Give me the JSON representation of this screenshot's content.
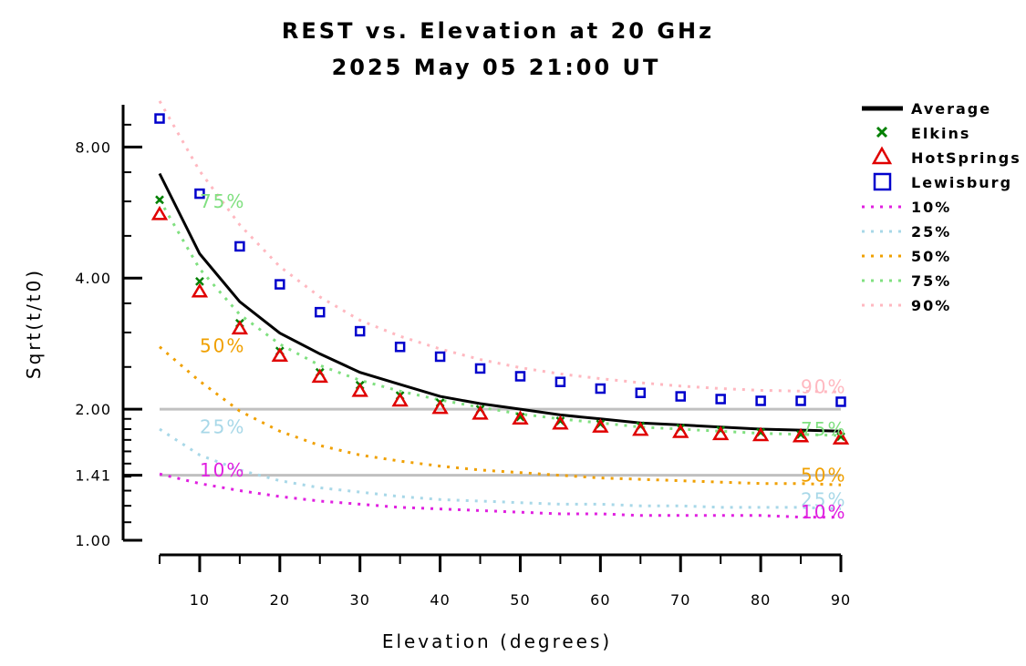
{
  "chart_data": {
    "type": "scatter",
    "title": "REST vs. Elevation at 20 GHz",
    "subtitle": "2025 May 05 21:00 UT",
    "xlabel": "Elevation (degrees)",
    "ylabel": "Sqrt(t/t0)",
    "x_ticks": [
      "10",
      "20",
      "30",
      "40",
      "50",
      "60",
      "70",
      "80",
      "90"
    ],
    "x_tick_values": [
      10,
      20,
      30,
      40,
      50,
      60,
      70,
      80,
      90
    ],
    "y_scale": "log",
    "y_ticks": [
      "1.00",
      "1.41",
      "2.00",
      "4.00",
      "8.00"
    ],
    "y_tick_values": [
      1.0,
      1.41,
      2.0,
      4.0,
      8.0
    ],
    "xlim": [
      5,
      90
    ],
    "ylim": [
      1.0,
      10.0
    ],
    "reference_lines": [
      1.41,
      2.0
    ],
    "x": [
      5,
      10,
      15,
      20,
      25,
      30,
      35,
      40,
      45,
      50,
      55,
      60,
      65,
      70,
      75,
      80,
      85,
      90
    ],
    "series": [
      {
        "name": "Average",
        "style": "line",
        "color": "#000000",
        "values": [
          6.95,
          4.55,
          3.53,
          2.99,
          2.68,
          2.43,
          2.28,
          2.14,
          2.06,
          2.0,
          1.94,
          1.9,
          1.86,
          1.84,
          1.82,
          1.8,
          1.79,
          1.78
        ]
      },
      {
        "name": "Elkins",
        "style": "x-marker",
        "color": "#008000",
        "values": [
          6.05,
          3.93,
          3.15,
          2.72,
          2.43,
          2.27,
          2.15,
          2.07,
          2.0,
          1.92,
          1.88,
          1.85,
          1.83,
          1.81,
          1.79,
          1.77,
          1.75,
          1.73
        ]
      },
      {
        "name": "HotSprings",
        "style": "triangle-marker",
        "color": "#e00000",
        "values": [
          5.6,
          3.72,
          3.06,
          2.65,
          2.37,
          2.2,
          2.09,
          2.01,
          1.95,
          1.9,
          1.85,
          1.82,
          1.79,
          1.77,
          1.75,
          1.74,
          1.73,
          1.71
        ]
      },
      {
        "name": "Lewisburg",
        "style": "square-marker",
        "color": "#0000cc",
        "values": [
          9.3,
          6.25,
          4.73,
          3.87,
          3.34,
          3.02,
          2.78,
          2.64,
          2.48,
          2.38,
          2.31,
          2.23,
          2.18,
          2.14,
          2.11,
          2.09,
          2.09,
          2.08
        ]
      },
      {
        "name": "10%",
        "style": "dotted",
        "color": "#e020e0",
        "values": [
          1.42,
          1.35,
          1.3,
          1.26,
          1.23,
          1.21,
          1.19,
          1.18,
          1.17,
          1.16,
          1.15,
          1.15,
          1.14,
          1.14,
          1.14,
          1.14,
          1.13,
          1.13
        ]
      },
      {
        "name": "25%",
        "style": "dotted",
        "color": "#a8d8e8",
        "values": [
          1.8,
          1.57,
          1.45,
          1.37,
          1.32,
          1.29,
          1.26,
          1.24,
          1.23,
          1.22,
          1.21,
          1.21,
          1.2,
          1.2,
          1.19,
          1.19,
          1.19,
          1.18
        ]
      },
      {
        "name": "50%",
        "style": "dotted",
        "color": "#f0a000",
        "values": [
          2.78,
          2.32,
          1.98,
          1.78,
          1.65,
          1.57,
          1.52,
          1.48,
          1.45,
          1.43,
          1.41,
          1.39,
          1.38,
          1.37,
          1.36,
          1.35,
          1.35,
          1.34
        ]
      },
      {
        "name": "75%",
        "style": "dotted",
        "color": "#80e080",
        "values": [
          6.05,
          4.2,
          3.3,
          2.82,
          2.52,
          2.33,
          2.2,
          2.1,
          2.02,
          1.95,
          1.9,
          1.86,
          1.82,
          1.8,
          1.78,
          1.76,
          1.75,
          1.74
        ]
      },
      {
        "name": "90%",
        "style": "dotted",
        "color": "#ffb8c0",
        "values": [
          10.2,
          7.05,
          5.3,
          4.25,
          3.62,
          3.2,
          2.94,
          2.75,
          2.6,
          2.49,
          2.41,
          2.35,
          2.3,
          2.26,
          2.23,
          2.21,
          2.2,
          2.19
        ]
      }
    ],
    "percentile_labels": [
      {
        "text": "75%",
        "series": "75%",
        "x": 10,
        "y": 6.0
      },
      {
        "text": "50%",
        "series": "50%",
        "x": 10,
        "y": 2.8
      },
      {
        "text": "25%",
        "series": "25%",
        "x": 10,
        "y": 1.82
      },
      {
        "text": "10%",
        "series": "10%",
        "x": 10,
        "y": 1.45
      },
      {
        "text": "90%",
        "series": "90%",
        "x": 85,
        "y": 2.25
      },
      {
        "text": "75%",
        "series": "75%",
        "x": 85,
        "y": 1.8
      },
      {
        "text": "50%",
        "series": "50%",
        "x": 85,
        "y": 1.41
      },
      {
        "text": "25%",
        "series": "25%",
        "x": 85,
        "y": 1.24
      },
      {
        "text": "10%",
        "series": "10%",
        "x": 85,
        "y": 1.16
      }
    ],
    "legend": {
      "position": "right",
      "entries": [
        "Average",
        "Elkins",
        "HotSprings",
        "Lewisburg",
        "10%",
        "25%",
        "50%",
        "75%",
        "90%"
      ]
    }
  }
}
